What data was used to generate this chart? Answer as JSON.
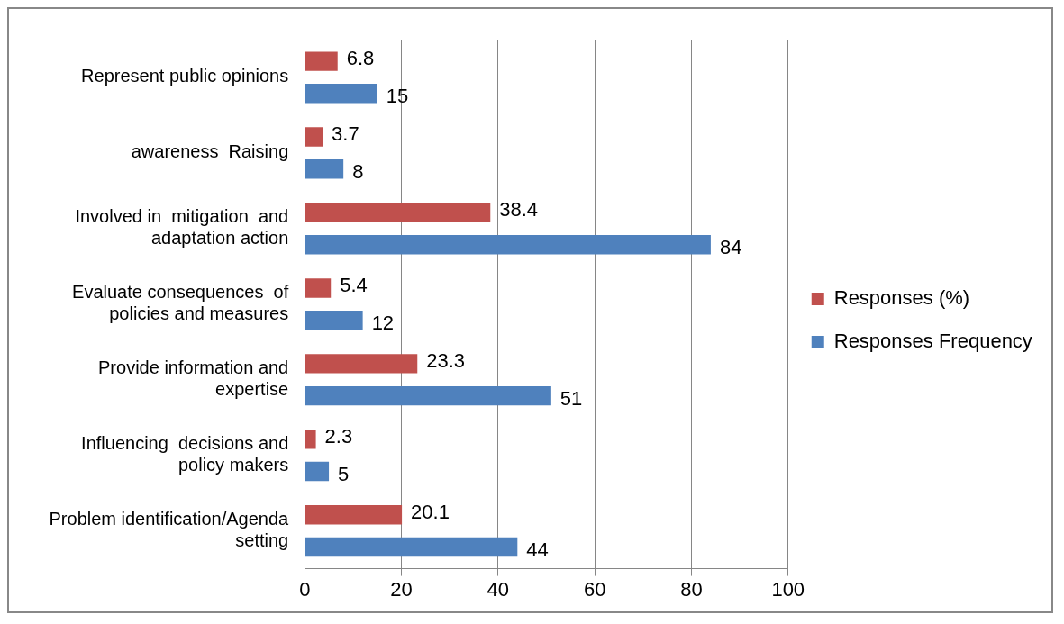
{
  "chart_data": {
    "type": "bar",
    "orientation": "horizontal",
    "categories": [
      "Represent public opinions",
      "awareness  Raising",
      "Involved in  mitigation  and\nadaptation action",
      "Evaluate consequences  of\npolicies and measures",
      "Provide information and\nexpertise",
      "Influencing  decisions and\npolicy makers",
      "Problem identification/Agenda\nsetting"
    ],
    "series": [
      {
        "name": "Responses (%)",
        "color": "#c0504d",
        "values": [
          6.8,
          3.7,
          38.4,
          5.4,
          23.3,
          2.3,
          20.1
        ]
      },
      {
        "name": "Responses Frequency",
        "color": "#4f81bd",
        "values": [
          15,
          8,
          84,
          12,
          51,
          5,
          44
        ]
      }
    ],
    "xlim": [
      0,
      100
    ],
    "xticks": [
      0,
      20,
      40,
      60,
      80,
      100
    ],
    "grid": "x",
    "legend": "right",
    "data_labels": true
  }
}
